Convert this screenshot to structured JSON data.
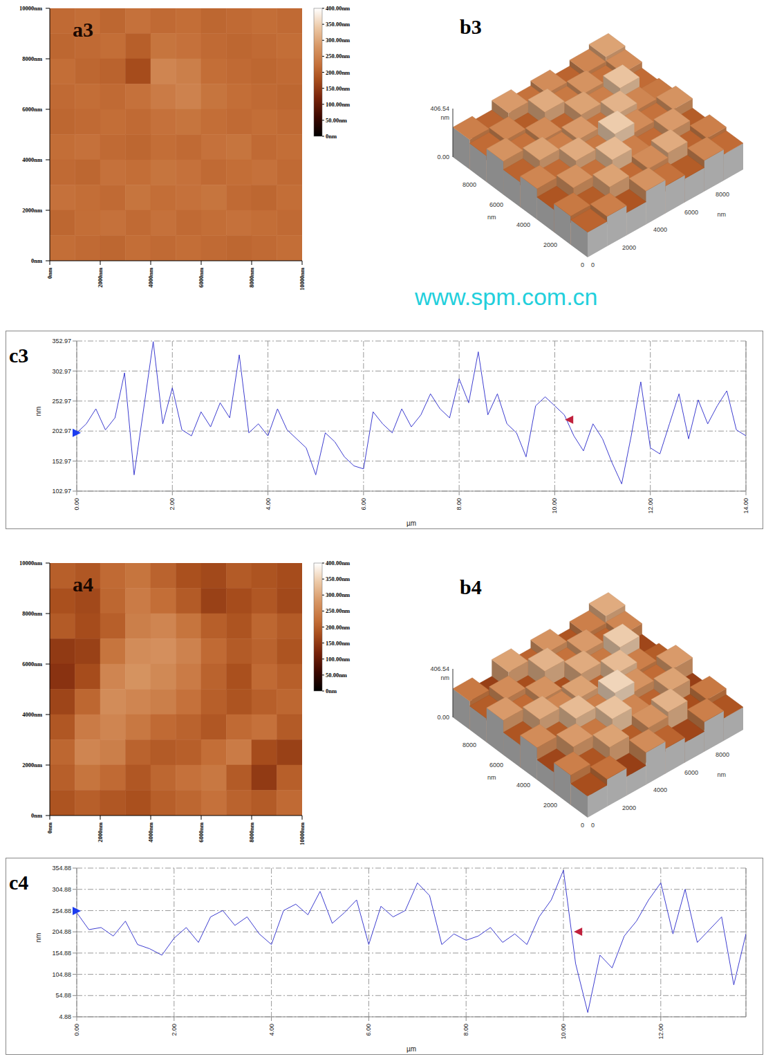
{
  "watermark": "www.spm.com.cn",
  "chart_data": [
    {
      "panel": "a3",
      "type": "heatmap",
      "xlim": [
        0,
        10000
      ],
      "ylim": [
        0,
        10000
      ],
      "xticks": [
        {
          "value": 0,
          "label": "0nm"
        },
        {
          "value": 2000,
          "label": "2000nm"
        },
        {
          "value": 4000,
          "label": "4000nm"
        },
        {
          "value": 6000,
          "label": "6000nm"
        },
        {
          "value": 8000,
          "label": "8000nm"
        },
        {
          "value": 10000,
          "label": "10000nm"
        }
      ],
      "yticks": [
        {
          "value": 0,
          "label": "0nm"
        },
        {
          "value": 2000,
          "label": "2000nm"
        },
        {
          "value": 4000,
          "label": "4000nm"
        },
        {
          "value": 6000,
          "label": "6000nm"
        },
        {
          "value": 8000,
          "label": "8000nm"
        },
        {
          "value": 10000,
          "label": "10000nm"
        }
      ],
      "cells": [
        [
          215,
          220,
          210,
          225,
          215,
          220,
          210,
          215,
          220,
          215
        ],
        [
          210,
          215,
          220,
          200,
          230,
          225,
          215,
          210,
          215,
          220
        ],
        [
          220,
          210,
          205,
          175,
          255,
          245,
          220,
          215,
          210,
          215
        ],
        [
          215,
          220,
          215,
          225,
          240,
          250,
          230,
          220,
          215,
          210
        ],
        [
          210,
          215,
          220,
          215,
          225,
          230,
          220,
          215,
          220,
          215
        ],
        [
          220,
          225,
          215,
          210,
          220,
          215,
          225,
          230,
          215,
          220
        ],
        [
          215,
          210,
          225,
          220,
          230,
          225,
          215,
          220,
          225,
          215
        ],
        [
          225,
          220,
          215,
          230,
          220,
          225,
          230,
          215,
          210,
          220
        ],
        [
          210,
          220,
          225,
          215,
          225,
          215,
          220,
          225,
          220,
          215
        ],
        [
          220,
          215,
          210,
          220,
          215,
          220,
          215,
          210,
          215,
          220
        ]
      ],
      "colorbar": {
        "range": [
          0,
          400
        ],
        "ticks": [
          {
            "value": 0,
            "label": "0nm"
          },
          {
            "value": 50,
            "label": "50.00nm"
          },
          {
            "value": 100,
            "label": "100.00nm"
          },
          {
            "value": 150,
            "label": "150.00nm"
          },
          {
            "value": 200,
            "label": "200.00nm"
          },
          {
            "value": 250,
            "label": "250.00nm"
          },
          {
            "value": 300,
            "label": "300.00nm"
          },
          {
            "value": 350,
            "label": "350.00nm"
          },
          {
            "value": 400,
            "label": "400.00nm"
          }
        ]
      }
    },
    {
      "panel": "b3",
      "type": "surface",
      "xlim": [
        0,
        10000
      ],
      "ylim": [
        0,
        10000
      ],
      "xticks": [
        0,
        2000,
        4000,
        6000,
        8000
      ],
      "yticks": [
        0,
        2000,
        4000,
        6000,
        8000
      ],
      "x_label": "nm",
      "y_label": "nm",
      "zlim": [
        0,
        406.54
      ],
      "zticks": [
        {
          "value": 0,
          "label": "0.00"
        },
        {
          "value": 406.54,
          "label": "406.54"
        }
      ],
      "z_label": "nm",
      "cells": [
        [
          210,
          250,
          190,
          280,
          230,
          200,
          260,
          220
        ],
        [
          240,
          200,
          300,
          220,
          270,
          310,
          210,
          250
        ],
        [
          190,
          280,
          230,
          330,
          250,
          220,
          290,
          200
        ],
        [
          260,
          220,
          310,
          240,
          350,
          270,
          230,
          280
        ],
        [
          210,
          300,
          250,
          290,
          230,
          320,
          260,
          240
        ],
        [
          280,
          230,
          270,
          210,
          300,
          250,
          340,
          220
        ],
        [
          220,
          260,
          200,
          310,
          240,
          280,
          230,
          270
        ],
        [
          250,
          210,
          290,
          230,
          270,
          210,
          260,
          300
        ]
      ]
    },
    {
      "panel": "c3",
      "type": "line",
      "color": "#3d3dd0",
      "grid": true,
      "x_label": "µm",
      "y_label": "nm",
      "xlim": [
        0,
        14
      ],
      "xticks": [
        {
          "value": 0,
          "label": "0.00"
        },
        {
          "value": 2,
          "label": "2.00"
        },
        {
          "value": 4,
          "label": "4.00"
        },
        {
          "value": 6,
          "label": "6.00"
        },
        {
          "value": 8,
          "label": "8.00"
        },
        {
          "value": 10,
          "label": "10.00"
        },
        {
          "value": 12,
          "label": "12.00"
        },
        {
          "value": 14,
          "label": "14.00"
        }
      ],
      "ylim": [
        102.97,
        352.97
      ],
      "yticks": [
        102.97,
        152.97,
        202.97,
        252.97,
        302.97,
        352.97
      ],
      "x": [
        0,
        0.2,
        0.4,
        0.6,
        0.8,
        1,
        1.2,
        1.4,
        1.6,
        1.8,
        2,
        2.2,
        2.4,
        2.6,
        2.8,
        3,
        3.2,
        3.4,
        3.6,
        3.8,
        4,
        4.2,
        4.4,
        4.6,
        4.8,
        5,
        5.2,
        5.4,
        5.6,
        5.8,
        6,
        6.2,
        6.4,
        6.6,
        6.8,
        7,
        7.2,
        7.4,
        7.6,
        7.8,
        8,
        8.2,
        8.4,
        8.6,
        8.8,
        9,
        9.2,
        9.4,
        9.6,
        9.8,
        10,
        10.2,
        10.4,
        10.6,
        10.8,
        11,
        11.2,
        11.4,
        11.6,
        11.8,
        12,
        12.2,
        12.4,
        12.6,
        12.8,
        13,
        13.2,
        13.4,
        13.6,
        13.8,
        14
      ],
      "values": [
        200,
        215,
        240,
        205,
        225,
        300,
        130,
        240,
        352,
        215,
        275,
        205,
        195,
        235,
        210,
        250,
        225,
        330,
        200,
        215,
        195,
        240,
        205,
        190,
        175,
        130,
        200,
        185,
        160,
        145,
        140,
        235,
        215,
        200,
        240,
        210,
        230,
        265,
        240,
        225,
        290,
        250,
        335,
        230,
        265,
        215,
        200,
        160,
        245,
        260,
        245,
        230,
        195,
        170,
        215,
        190,
        150,
        115,
        195,
        285,
        175,
        165,
        215,
        265,
        190,
        255,
        215,
        245,
        270,
        205,
        195
      ],
      "markers": [
        {
          "x": 0,
          "y": 200,
          "color": "#1c3cf0",
          "marker": "triangle-right"
        },
        {
          "x": 10.3,
          "y": 222,
          "color": "#c0203c",
          "marker": "triangle-left"
        }
      ]
    },
    {
      "panel": "a4",
      "type": "heatmap",
      "xlim": [
        0,
        10000
      ],
      "ylim": [
        0,
        10000
      ],
      "xticks": [
        {
          "value": 0,
          "label": "0nm"
        },
        {
          "value": 2000,
          "label": "2000nm"
        },
        {
          "value": 4000,
          "label": "4000nm"
        },
        {
          "value": 6000,
          "label": "6000nm"
        },
        {
          "value": 8000,
          "label": "8000nm"
        },
        {
          "value": 10000,
          "label": "10000nm"
        }
      ],
      "yticks": [
        {
          "value": 0,
          "label": "0nm"
        },
        {
          "value": 2000,
          "label": "2000nm"
        },
        {
          "value": 4000,
          "label": "4000nm"
        },
        {
          "value": 6000,
          "label": "6000nm"
        },
        {
          "value": 8000,
          "label": "8000nm"
        },
        {
          "value": 10000,
          "label": "10000nm"
        }
      ],
      "cells": [
        [
          200,
          190,
          215,
          230,
          205,
          180,
          170,
          195,
          185,
          175
        ],
        [
          180,
          170,
          210,
          240,
          220,
          195,
          160,
          175,
          190,
          170
        ],
        [
          195,
          175,
          200,
          245,
          255,
          230,
          200,
          185,
          210,
          195
        ],
        [
          150,
          160,
          230,
          265,
          270,
          250,
          215,
          195,
          205,
          185
        ],
        [
          140,
          175,
          255,
          275,
          260,
          240,
          205,
          180,
          215,
          200
        ],
        [
          165,
          210,
          265,
          255,
          245,
          225,
          200,
          185,
          200,
          210
        ],
        [
          190,
          240,
          255,
          235,
          215,
          205,
          190,
          215,
          225,
          195
        ],
        [
          210,
          255,
          245,
          205,
          195,
          200,
          220,
          240,
          175,
          160
        ],
        [
          200,
          230,
          215,
          190,
          210,
          225,
          235,
          195,
          150,
          200
        ],
        [
          185,
          200,
          190,
          180,
          200,
          210,
          225,
          205,
          195,
          215
        ]
      ],
      "colorbar": {
        "range": [
          0,
          400
        ],
        "ticks": [
          {
            "value": 0,
            "label": "0nm"
          },
          {
            "value": 50,
            "label": "50.00nm"
          },
          {
            "value": 100,
            "label": "100.00nm"
          },
          {
            "value": 150,
            "label": "150.00nm"
          },
          {
            "value": 200,
            "label": "200.00nm"
          },
          {
            "value": 250,
            "label": "250.00nm"
          },
          {
            "value": 300,
            "label": "300.00nm"
          },
          {
            "value": 350,
            "label": "350.00nm"
          },
          {
            "value": 400,
            "label": "400.00nm"
          }
        ]
      }
    },
    {
      "panel": "b4",
      "type": "surface",
      "xlim": [
        0,
        10000
      ],
      "ylim": [
        0,
        10000
      ],
      "xticks": [
        0,
        2000,
        4000,
        6000,
        8000
      ],
      "yticks": [
        0,
        2000,
        4000,
        6000,
        8000
      ],
      "x_label": "nm",
      "y_label": "nm",
      "zlim": [
        0,
        406.54
      ],
      "zticks": [
        {
          "value": 0,
          "label": "0.00"
        },
        {
          "value": 406.54,
          "label": "406.54"
        }
      ],
      "z_label": "nm",
      "cells": [
        [
          180,
          230,
          160,
          270,
          210,
          170,
          250,
          190
        ],
        [
          250,
          190,
          300,
          200,
          280,
          320,
          180,
          240
        ],
        [
          170,
          290,
          240,
          340,
          260,
          210,
          300,
          160
        ],
        [
          270,
          200,
          330,
          250,
          360,
          280,
          220,
          290
        ],
        [
          190,
          310,
          260,
          300,
          210,
          330,
          250,
          200
        ],
        [
          290,
          220,
          280,
          180,
          310,
          240,
          350,
          170
        ],
        [
          200,
          270,
          180,
          320,
          230,
          290,
          210,
          260
        ],
        [
          240,
          160,
          300,
          210,
          280,
          190,
          250,
          310
        ]
      ]
    },
    {
      "panel": "c4",
      "type": "line",
      "color": "#3d3dd0",
      "grid": true,
      "x_label": "µm",
      "y_label": "nm",
      "xlim": [
        0,
        13.75
      ],
      "xticks": [
        {
          "value": 0,
          "label": "0.00"
        },
        {
          "value": 2,
          "label": "2.00"
        },
        {
          "value": 4,
          "label": "4.00"
        },
        {
          "value": 6,
          "label": "6.00"
        },
        {
          "value": 8,
          "label": "8.00"
        },
        {
          "value": 10,
          "label": "10.00"
        },
        {
          "value": 12,
          "label": "12.00"
        }
      ],
      "ylim": [
        4.88,
        354.88
      ],
      "yticks": [
        4.88,
        54.88,
        104.88,
        154.88,
        204.88,
        254.88,
        304.88,
        354.88
      ],
      "x": [
        0,
        0.25,
        0.5,
        0.75,
        1,
        1.25,
        1.5,
        1.75,
        2,
        2.25,
        2.5,
        2.75,
        3,
        3.25,
        3.5,
        3.75,
        4,
        4.25,
        4.5,
        4.75,
        5,
        5.25,
        5.5,
        5.75,
        6,
        6.25,
        6.5,
        6.75,
        7,
        7.25,
        7.5,
        7.75,
        8,
        8.25,
        8.5,
        8.75,
        9,
        9.25,
        9.5,
        9.75,
        10,
        10.25,
        10.5,
        10.75,
        11,
        11.25,
        11.5,
        11.75,
        12,
        12.25,
        12.5,
        12.75,
        13,
        13.25,
        13.5,
        13.75
      ],
      "values": [
        250,
        210,
        215,
        195,
        230,
        175,
        165,
        150,
        190,
        215,
        180,
        240,
        255,
        220,
        240,
        200,
        175,
        255,
        270,
        245,
        300,
        225,
        250,
        280,
        175,
        265,
        240,
        255,
        320,
        290,
        175,
        200,
        185,
        195,
        215,
        180,
        200,
        175,
        240,
        280,
        350,
        130,
        15,
        150,
        120,
        195,
        230,
        280,
        320,
        200,
        305,
        180,
        210,
        240,
        80,
        200
      ],
      "markers": [
        {
          "x": 0,
          "y": 254,
          "color": "#1c3cf0",
          "marker": "triangle-right"
        },
        {
          "x": 10.3,
          "y": 205,
          "color": "#c0203c",
          "marker": "triangle-left"
        }
      ]
    }
  ]
}
